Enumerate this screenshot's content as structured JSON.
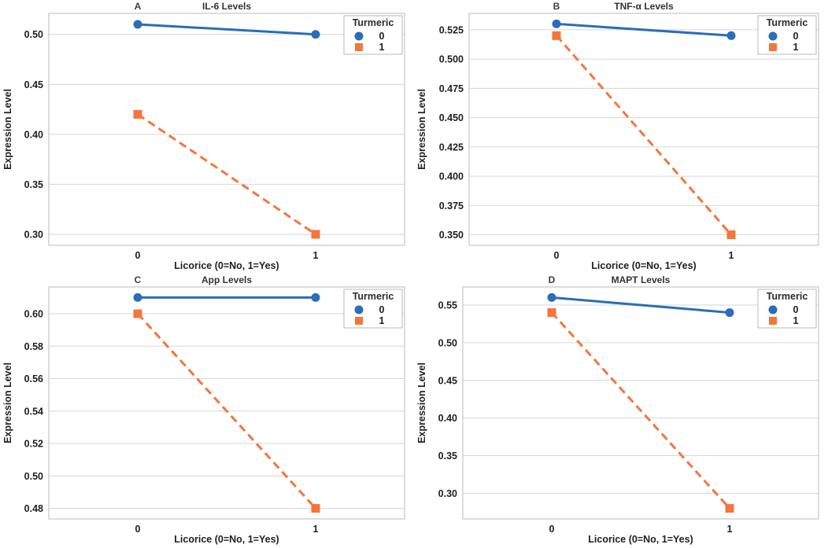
{
  "page": {
    "background": "#ffffff",
    "text_color": "#1f1f1f",
    "grid_color": "#d6d6d6",
    "border_color": "#c6c6c6"
  },
  "colors": {
    "turmeric_0_blue": "#2a6db8",
    "turmeric_1_orange": "#f4763b"
  },
  "chart_data": [
    {
      "type": "line",
      "panel_label": "A",
      "title": "IL-6 Levels",
      "xlabel": "Licorice (0=No, 1=Yes)",
      "ylabel": "Expression Level",
      "x": [
        0,
        1
      ],
      "xticklabels": [
        "0",
        "1"
      ],
      "xlim": [
        -0.5,
        1.5
      ],
      "yticks": [
        0.3,
        0.35,
        0.4,
        0.45,
        0.5
      ],
      "yticklabels": [
        "0.30",
        "0.35",
        "0.40",
        "0.45",
        "0.50"
      ],
      "ylim": [
        0.289,
        0.521
      ],
      "margin_left": 62,
      "grid": true,
      "legend": {
        "title": "Turmeric",
        "position": "upper right",
        "entries": [
          "0",
          "1"
        ]
      },
      "series": [
        {
          "name": "0",
          "values": [
            0.51,
            0.5
          ],
          "color": "#2a6db8",
          "marker": "circle",
          "dashed": false
        },
        {
          "name": "1",
          "values": [
            0.42,
            0.3
          ],
          "color": "#f4763b",
          "marker": "square",
          "dashed": true
        }
      ]
    },
    {
      "type": "line",
      "panel_label": "B",
      "title": "TNF-α Levels",
      "xlabel": "Licorice (0=No, 1=Yes)",
      "ylabel": "Expression Level",
      "x": [
        0,
        1
      ],
      "xticklabels": [
        "0",
        "1"
      ],
      "xlim": [
        -0.5,
        1.5
      ],
      "yticks": [
        0.35,
        0.375,
        0.4,
        0.425,
        0.45,
        0.475,
        0.5,
        0.525
      ],
      "yticklabels": [
        "0.350",
        "0.375",
        "0.400",
        "0.425",
        "0.450",
        "0.475",
        "0.500",
        "0.525"
      ],
      "ylim": [
        0.341,
        0.539
      ],
      "margin_left": 70,
      "grid": true,
      "legend": {
        "title": "Turmeric",
        "position": "upper right",
        "entries": [
          "0",
          "1"
        ]
      },
      "series": [
        {
          "name": "0",
          "values": [
            0.53,
            0.52
          ],
          "color": "#2a6db8",
          "marker": "circle",
          "dashed": false
        },
        {
          "name": "1",
          "values": [
            0.52,
            0.35
          ],
          "color": "#f4763b",
          "marker": "square",
          "dashed": true
        }
      ]
    },
    {
      "type": "line",
      "panel_label": "C",
      "title": "App Levels",
      "xlabel": "Licorice (0=No, 1=Yes)",
      "ylabel": "Expression Level",
      "x": [
        0,
        1
      ],
      "xticklabels": [
        "0",
        "1"
      ],
      "xlim": [
        -0.5,
        1.5
      ],
      "yticks": [
        0.48,
        0.5,
        0.52,
        0.54,
        0.56,
        0.58,
        0.6
      ],
      "yticklabels": [
        "0.48",
        "0.50",
        "0.52",
        "0.54",
        "0.56",
        "0.58",
        "0.60"
      ],
      "ylim": [
        0.4735,
        0.6165
      ],
      "margin_left": 62,
      "grid": true,
      "legend": {
        "title": "Turmeric",
        "position": "upper right",
        "entries": [
          "0",
          "1"
        ]
      },
      "series": [
        {
          "name": "0",
          "values": [
            0.61,
            0.61
          ],
          "color": "#2a6db8",
          "marker": "circle",
          "dashed": false
        },
        {
          "name": "1",
          "values": [
            0.6,
            0.48
          ],
          "color": "#f4763b",
          "marker": "square",
          "dashed": true
        }
      ]
    },
    {
      "type": "line",
      "panel_label": "D",
      "title": "MAPT Levels",
      "xlabel": "Licorice (0=No, 1=Yes)",
      "ylabel": "Expression Level",
      "x": [
        0,
        1
      ],
      "xticklabels": [
        "0",
        "1"
      ],
      "xlim": [
        -0.5,
        1.5
      ],
      "yticks": [
        0.3,
        0.35,
        0.4,
        0.45,
        0.5,
        0.55
      ],
      "yticklabels": [
        "0.30",
        "0.35",
        "0.40",
        "0.45",
        "0.50",
        "0.55"
      ],
      "ylim": [
        0.266,
        0.574
      ],
      "margin_left": 62,
      "grid": true,
      "legend": {
        "title": "Turmeric",
        "position": "upper right",
        "entries": [
          "0",
          "1"
        ]
      },
      "series": [
        {
          "name": "0",
          "values": [
            0.56,
            0.54
          ],
          "color": "#2a6db8",
          "marker": "circle",
          "dashed": false
        },
        {
          "name": "1",
          "values": [
            0.54,
            0.28
          ],
          "color": "#f4763b",
          "marker": "square",
          "dashed": true
        }
      ]
    }
  ]
}
